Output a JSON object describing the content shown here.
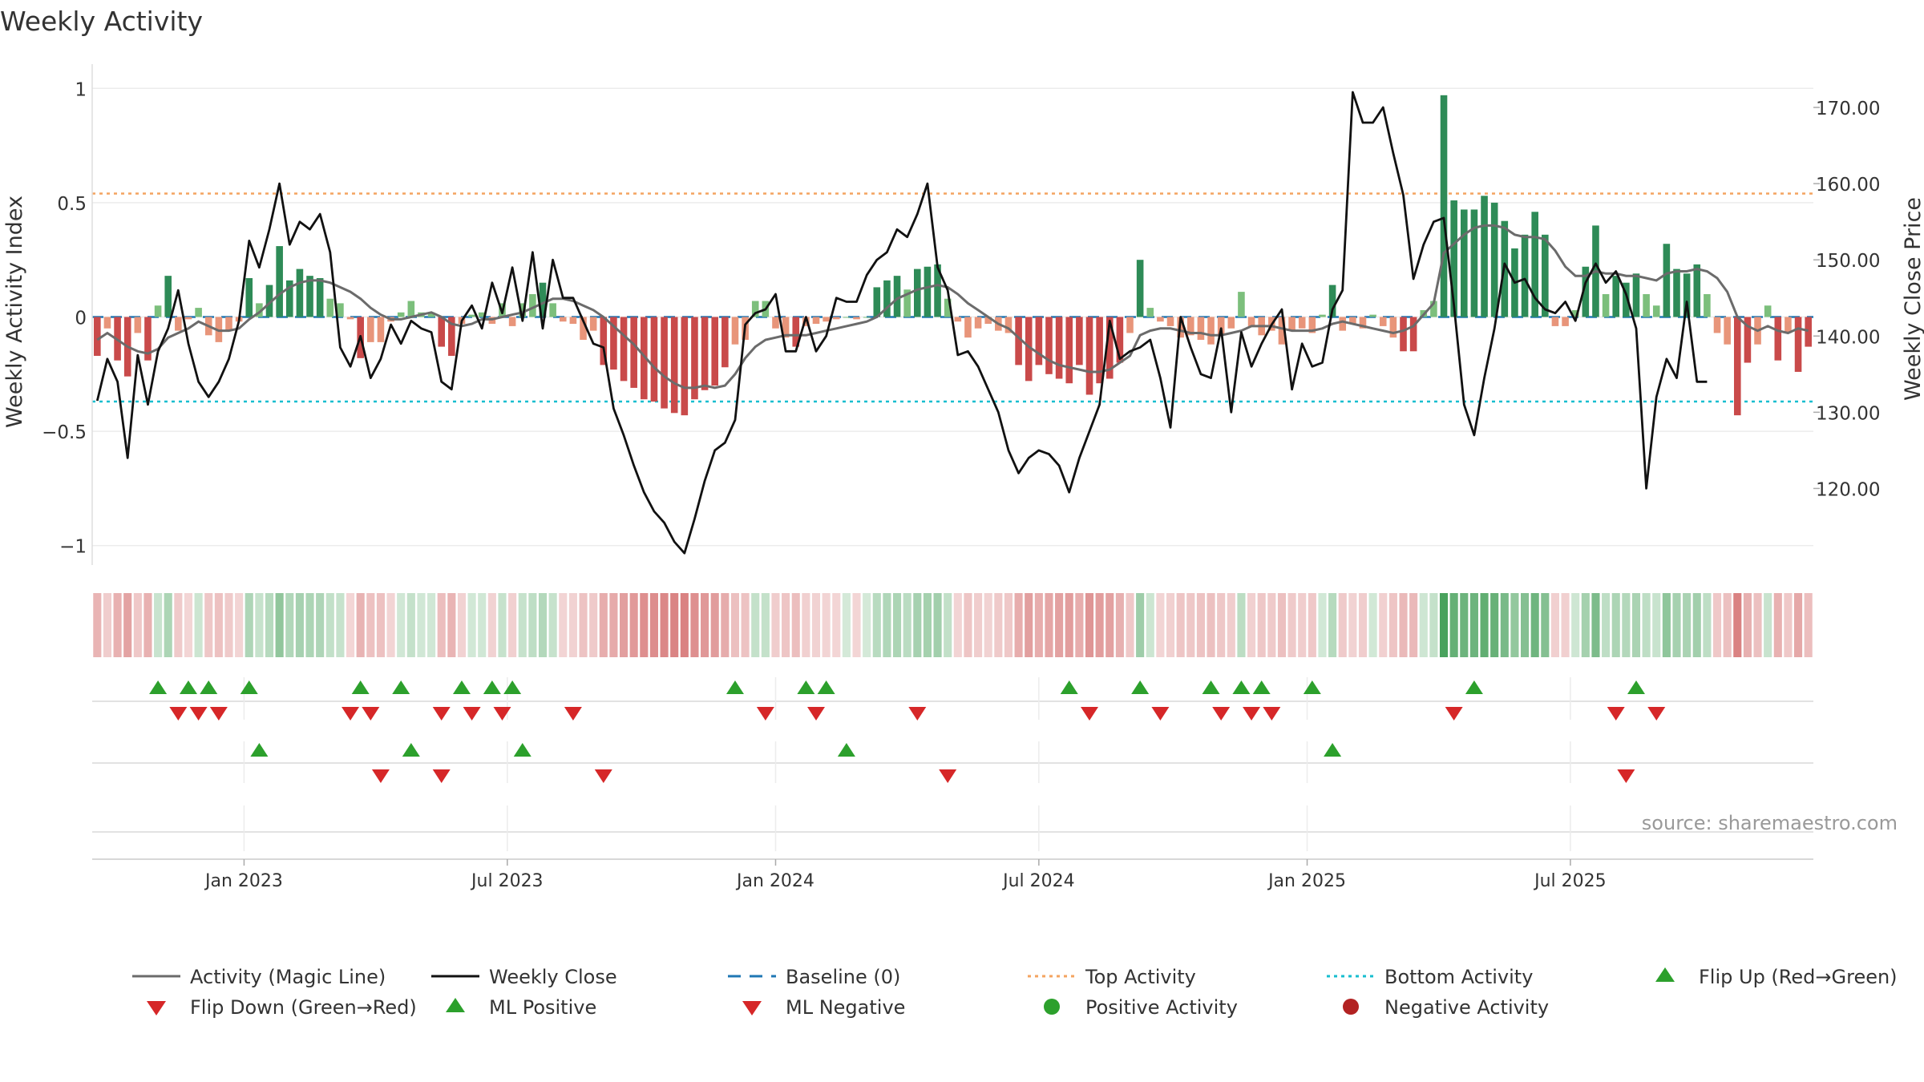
{
  "colors": {
    "pos_strong": "#2e8b57",
    "pos_light": "#7cbf7c",
    "neg_strong": "#c94a4a",
    "neg_light": "#e8957a",
    "heat_pos": "#3a9a4f",
    "heat_neg": "#c94a4a",
    "magic": "#6b6b6b",
    "close": "#111111",
    "baseline": "#1f77b4",
    "top": "#f4a460",
    "bottom": "#17becf",
    "flip_up": "#2ca02c",
    "flip_down": "#d62728",
    "pos_dot": "#2ca02c",
    "neg_dot": "#b22222"
  },
  "chart_data": {
    "type": "bar+line",
    "title": "Weekly Activity",
    "ylabel": "Weekly Activity Index",
    "ylabel_right": "Weekly Close Price",
    "source": "source: sharemaestro.com",
    "ylim": [
      -1.05,
      1.05
    ],
    "ylim_right": [
      111,
      174
    ],
    "yticks_left": [
      {
        "v": 1,
        "label": "1"
      },
      {
        "v": 0.5,
        "label": "0.5"
      },
      {
        "v": 0,
        "label": "0"
      },
      {
        "v": -0.5,
        "label": "−0.5"
      },
      {
        "v": -1,
        "label": "−1"
      }
    ],
    "yticks_right": [
      {
        "v": 170,
        "label": "170.00"
      },
      {
        "v": 160,
        "label": "160.00"
      },
      {
        "v": 150,
        "label": "150.00"
      },
      {
        "v": 140,
        "label": "140.00"
      },
      {
        "v": 130,
        "label": "130.00"
      },
      {
        "v": 120,
        "label": "120.00"
      }
    ],
    "xticks": [
      {
        "week": 14.5,
        "label": "Jan 2023"
      },
      {
        "week": 40.5,
        "label": "Jul 2023"
      },
      {
        "week": 67,
        "label": "Jan 2024"
      },
      {
        "week": 93,
        "label": "Jul 2024"
      },
      {
        "week": 119.5,
        "label": "Jan 2025"
      },
      {
        "week": 145.5,
        "label": "Jul 2025"
      }
    ],
    "top_activity": 0.54,
    "bottom_activity": -0.37,
    "activity": [
      -0.17,
      -0.05,
      -0.19,
      -0.26,
      -0.07,
      -0.19,
      0.05,
      0.18,
      -0.06,
      -0.01,
      0.04,
      -0.08,
      -0.11,
      -0.06,
      -0.02,
      0.17,
      0.06,
      0.14,
      0.31,
      0.16,
      0.21,
      0.18,
      0.17,
      0.08,
      0.06,
      -0.01,
      -0.18,
      -0.11,
      -0.11,
      -0.02,
      0.02,
      0.07,
      0.02,
      0.02,
      -0.13,
      -0.17,
      -0.03,
      0.01,
      0.02,
      -0.03,
      0.06,
      -0.04,
      0.06,
      0.1,
      0.15,
      0.06,
      -0.02,
      -0.03,
      -0.1,
      -0.06,
      -0.21,
      -0.23,
      -0.28,
      -0.31,
      -0.36,
      -0.37,
      -0.4,
      -0.42,
      -0.43,
      -0.36,
      -0.32,
      -0.3,
      -0.22,
      -0.12,
      -0.1,
      0.07,
      0.07,
      -0.05,
      -0.09,
      -0.13,
      -0.04,
      -0.03,
      -0.02,
      -0.01,
      0.0,
      -0.01,
      0.0,
      0.13,
      0.16,
      0.18,
      0.12,
      0.21,
      0.22,
      0.23,
      0.08,
      -0.02,
      -0.09,
      -0.05,
      -0.03,
      -0.06,
      -0.07,
      -0.21,
      -0.28,
      -0.21,
      -0.25,
      -0.27,
      -0.29,
      -0.21,
      -0.34,
      -0.29,
      -0.27,
      -0.2,
      -0.07,
      0.25,
      0.04,
      -0.02,
      -0.04,
      -0.09,
      -0.08,
      -0.1,
      -0.12,
      -0.08,
      -0.05,
      0.11,
      -0.04,
      -0.08,
      -0.06,
      -0.12,
      -0.06,
      -0.05,
      -0.07,
      0.01,
      0.14,
      -0.06,
      -0.03,
      -0.05,
      0.01,
      -0.04,
      -0.09,
      -0.15,
      -0.15,
      0.03,
      0.07,
      0.97,
      0.51,
      0.47,
      0.47,
      0.53,
      0.5,
      0.42,
      0.3,
      0.36,
      0.46,
      0.36,
      -0.04,
      -0.04,
      0.03,
      0.22,
      0.4,
      0.1,
      0.18,
      0.15,
      0.19,
      0.1,
      0.05,
      0.32,
      0.21,
      0.19,
      0.23,
      0.1,
      -0.07,
      -0.12,
      -0.43,
      -0.2,
      -0.12,
      0.05,
      -0.19,
      -0.07,
      -0.24,
      -0.13
    ],
    "close": [
      131.5,
      137,
      134,
      124,
      137.5,
      131,
      138,
      141,
      146,
      139,
      134,
      132,
      134,
      137,
      142,
      152.5,
      149,
      154,
      160,
      152,
      155,
      154,
      156,
      151,
      138.5,
      136,
      140,
      134.5,
      137,
      141.5,
      139,
      142,
      141,
      140.5,
      134,
      133,
      142,
      144,
      141,
      147,
      143,
      149,
      142,
      151,
      141,
      150,
      145,
      145,
      142,
      139,
      138.5,
      130.5,
      127,
      123,
      119.5,
      117,
      115.5,
      113,
      111.5,
      116,
      121,
      125,
      126,
      129,
      141.5,
      143,
      143.5,
      145.5,
      138,
      138,
      142.5,
      138,
      140,
      145,
      144.5,
      144.5,
      148,
      150,
      151,
      154,
      153,
      156,
      160,
      149,
      146,
      137.5,
      138,
      136,
      133,
      130,
      125,
      122,
      124,
      125,
      124.5,
      123,
      119.5,
      124,
      127.5,
      131,
      142,
      137,
      138,
      138.5,
      139.5,
      134.5,
      128,
      142.5,
      138.5,
      135,
      134.5,
      141,
      130,
      140.5,
      136,
      139,
      141.5,
      143.5,
      133,
      139,
      136,
      136.5,
      143.5,
      146,
      172,
      168,
      168,
      170,
      164,
      158.5,
      147.5,
      152,
      155,
      155.5,
      144,
      131,
      127,
      134.5,
      141,
      149.5,
      147,
      147.5,
      145,
      143.5,
      143,
      144.5,
      142,
      147,
      149.5,
      147,
      148.5,
      145.5,
      141,
      120,
      132,
      137,
      134.5,
      144.5,
      134,
      134
    ],
    "magic": [
      -0.1,
      -0.07,
      -0.1,
      -0.13,
      -0.15,
      -0.16,
      -0.14,
      -0.09,
      -0.07,
      -0.05,
      -0.02,
      -0.04,
      -0.06,
      -0.06,
      -0.05,
      -0.01,
      0.02,
      0.06,
      0.1,
      0.13,
      0.15,
      0.16,
      0.16,
      0.15,
      0.13,
      0.11,
      0.08,
      0.04,
      0.01,
      -0.01,
      -0.01,
      0.0,
      0.01,
      0.02,
      0.0,
      -0.03,
      -0.04,
      -0.03,
      -0.01,
      -0.01,
      0.0,
      0.01,
      0.02,
      0.04,
      0.06,
      0.08,
      0.08,
      0.07,
      0.05,
      0.03,
      0.0,
      -0.04,
      -0.08,
      -0.12,
      -0.17,
      -0.22,
      -0.26,
      -0.29,
      -0.31,
      -0.31,
      -0.3,
      -0.31,
      -0.3,
      -0.25,
      -0.18,
      -0.13,
      -0.1,
      -0.09,
      -0.08,
      -0.08,
      -0.08,
      -0.07,
      -0.06,
      -0.05,
      -0.04,
      -0.03,
      -0.02,
      0.0,
      0.04,
      0.08,
      0.1,
      0.12,
      0.13,
      0.14,
      0.13,
      0.1,
      0.06,
      0.03,
      0.0,
      -0.03,
      -0.05,
      -0.09,
      -0.13,
      -0.16,
      -0.19,
      -0.21,
      -0.22,
      -0.23,
      -0.24,
      -0.24,
      -0.23,
      -0.2,
      -0.17,
      -0.08,
      -0.06,
      -0.05,
      -0.05,
      -0.06,
      -0.07,
      -0.07,
      -0.08,
      -0.08,
      -0.07,
      -0.06,
      -0.04,
      -0.04,
      -0.04,
      -0.05,
      -0.06,
      -0.06,
      -0.06,
      -0.05,
      -0.03,
      -0.02,
      -0.03,
      -0.04,
      -0.05,
      -0.06,
      -0.07,
      -0.06,
      -0.04,
      0.01,
      0.06,
      0.28,
      0.32,
      0.36,
      0.39,
      0.4,
      0.4,
      0.39,
      0.36,
      0.35,
      0.35,
      0.34,
      0.29,
      0.22,
      0.18,
      0.18,
      0.2,
      0.19,
      0.19,
      0.18,
      0.18,
      0.17,
      0.16,
      0.19,
      0.2,
      0.2,
      0.21,
      0.2,
      0.17,
      0.11,
      0.0,
      -0.04,
      -0.06,
      -0.04,
      -0.06,
      -0.07,
      -0.05,
      -0.06
    ],
    "flip_up_row1": [
      6,
      9,
      11,
      15,
      26,
      30,
      36,
      39,
      41,
      63,
      70,
      72,
      96,
      103,
      110,
      113,
      115,
      120,
      136,
      152
    ],
    "flip_down_row1": [
      8,
      10,
      12,
      25,
      27,
      34,
      37,
      40,
      47,
      66,
      71,
      81,
      98,
      105,
      111,
      114,
      116,
      134,
      150,
      154
    ],
    "ml_positive": [
      16,
      31,
      42,
      74,
      122
    ],
    "ml_negative": [
      28,
      34,
      50,
      84,
      151
    ],
    "legend": [
      {
        "key": "magic",
        "label": "Activity (Magic Line)",
        "symbol": "line"
      },
      {
        "key": "close",
        "label": "Weekly Close",
        "symbol": "line"
      },
      {
        "key": "baseline",
        "label": "Baseline (0)",
        "symbol": "dash"
      },
      {
        "key": "top",
        "label": "Top Activity",
        "symbol": "dot-line"
      },
      {
        "key": "bottom",
        "label": "Bottom Activity",
        "symbol": "dot-line"
      },
      {
        "key": "flip_up",
        "label": "Flip Up (Red→Green)",
        "symbol": "tri-up"
      },
      {
        "key": "flip_down",
        "label": "Flip Down (Green→Red)",
        "symbol": "tri-down"
      },
      {
        "key": "flip_up",
        "label": "ML Positive",
        "symbol": "tri-up"
      },
      {
        "key": "flip_down",
        "label": "ML Negative",
        "symbol": "tri-down"
      },
      {
        "key": "pos_dot",
        "label": "Positive Activity",
        "symbol": "circle"
      },
      {
        "key": "neg_dot",
        "label": "Negative Activity",
        "symbol": "circle"
      }
    ]
  }
}
